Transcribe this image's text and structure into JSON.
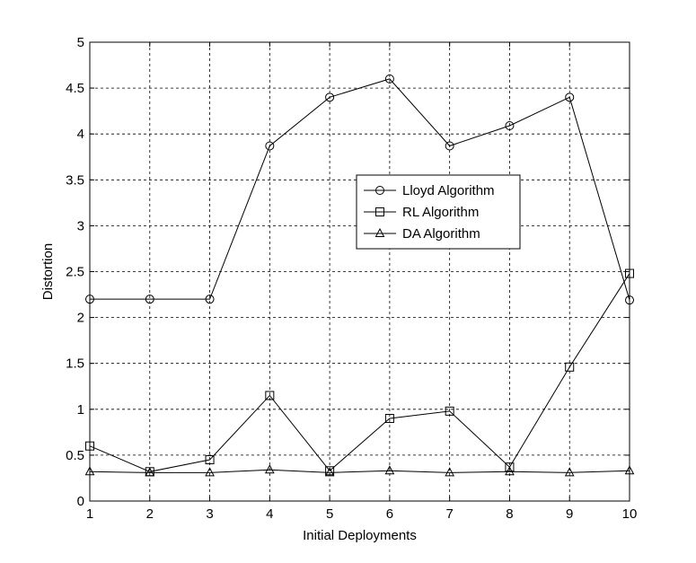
{
  "chart_data": {
    "type": "line",
    "title": "",
    "xlabel": "Initial Deployments",
    "ylabel": "Distortion",
    "xlim": [
      1,
      10
    ],
    "ylim": [
      0,
      5
    ],
    "xticks": [
      "1",
      "2",
      "3",
      "4",
      "5",
      "6",
      "7",
      "8",
      "9",
      "10"
    ],
    "yticks": [
      "0",
      "0.5",
      "1",
      "1.5",
      "2",
      "2.5",
      "3",
      "3.5",
      "4",
      "4.5",
      "5"
    ],
    "grid": true,
    "legend_position": "center",
    "x": [
      1,
      2,
      3,
      4,
      5,
      6,
      7,
      8,
      9,
      10
    ],
    "series": [
      {
        "name": "Lloyd Algorithm",
        "marker": "circle",
        "color": "#000000",
        "values": [
          2.2,
          2.2,
          2.2,
          3.87,
          4.4,
          4.6,
          3.87,
          4.09,
          4.4,
          2.19
        ]
      },
      {
        "name": "RL Algorithm",
        "marker": "square",
        "color": "#000000",
        "values": [
          0.6,
          0.32,
          0.45,
          1.15,
          0.33,
          0.9,
          0.98,
          0.37,
          1.46,
          2.48
        ]
      },
      {
        "name": "DA Algorithm",
        "marker": "triangle",
        "color": "#000000",
        "values": [
          0.32,
          0.31,
          0.31,
          0.34,
          0.31,
          0.33,
          0.31,
          0.32,
          0.31,
          0.33
        ]
      }
    ]
  }
}
